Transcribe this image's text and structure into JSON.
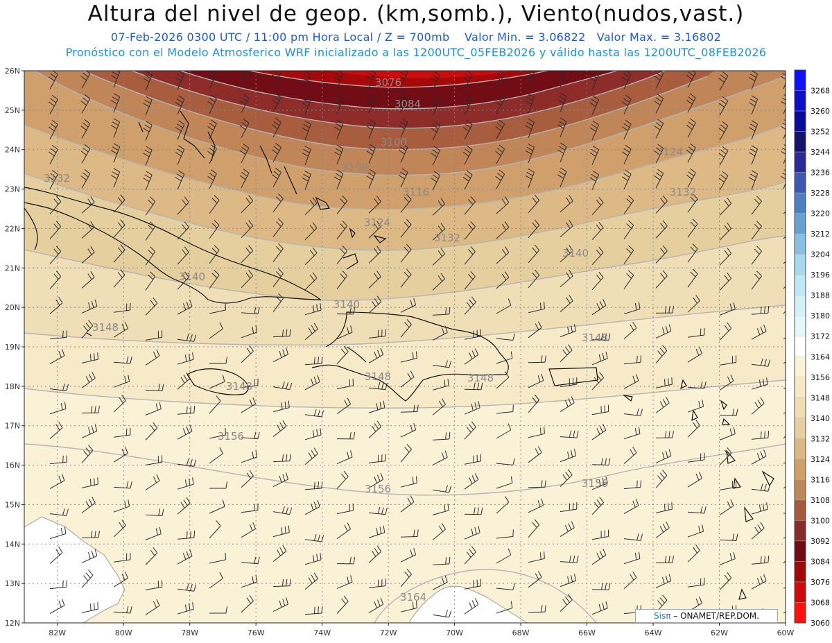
{
  "header": {
    "title": "Altura del nivel de geop. (km,somb.), Viento(nudos,vast.)",
    "datetime": "07-Feb-2026  0300 UTC / 11:00 pm Hora Local / Z = 700mb",
    "min_value": "Valor Min. = 3.06822",
    "max_value": "Valor Max. = 3.16802",
    "model_info": "Pronóstico con el Modelo Atmosferico WRF inicializado a las 1200UTC_05FEB2026 y válido hasta las  1200UTC_08FEB2026"
  },
  "axes": {
    "lat_labels": [
      "26N",
      "25N",
      "24N",
      "23N",
      "22N",
      "21N",
      "20N",
      "19N",
      "18N",
      "17N",
      "16N",
      "15N",
      "14N",
      "13N",
      "12N"
    ],
    "lon_labels": [
      "82W",
      "80W",
      "78W",
      "76W",
      "74W",
      "72W",
      "70W",
      "68W",
      "66W",
      "64W",
      "62W",
      "60W"
    ]
  },
  "contour_labels": [
    "3076",
    "3084",
    "3100",
    "3108",
    "3116",
    "3124",
    "3132",
    "3124",
    "3132",
    "3132",
    "3140",
    "3140",
    "3140",
    "3148",
    "3148",
    "3148",
    "3148",
    "3148",
    "3156",
    "3156",
    "3156",
    "3164"
  ],
  "legend": {
    "levels": [
      "3268",
      "3260",
      "3252",
      "3244",
      "3236",
      "3228",
      "3220",
      "3212",
      "3204",
      "3196",
      "3188",
      "3180",
      "3172",
      "3164",
      "3156",
      "3148",
      "3140",
      "3132",
      "3124",
      "3116",
      "3108",
      "3100",
      "3092",
      "3084",
      "3076",
      "3068",
      "3060"
    ],
    "colors": [
      "#1010ff",
      "#0e0ec8",
      "#0a0a9c",
      "#14146e",
      "#2a2a98",
      "#3d58b4",
      "#4f7ec4",
      "#6a9fd2",
      "#8bbfe2",
      "#a8d8ee",
      "#bfe8f4",
      "#d2f1f8",
      "#e4f8fb",
      "#ffffff",
      "#fbf3d8",
      "#f7e9c4",
      "#f0deb2",
      "#e8cea0",
      "#ddb882",
      "#cfa06a",
      "#bf8656",
      "#a55a3c",
      "#8a2a28",
      "#700c14",
      "#a00808",
      "#cc0c0c",
      "#ff1010"
    ]
  },
  "credit": {
    "brand": "Sisπ",
    "org": " – ONAMET/REP.DOM."
  }
}
